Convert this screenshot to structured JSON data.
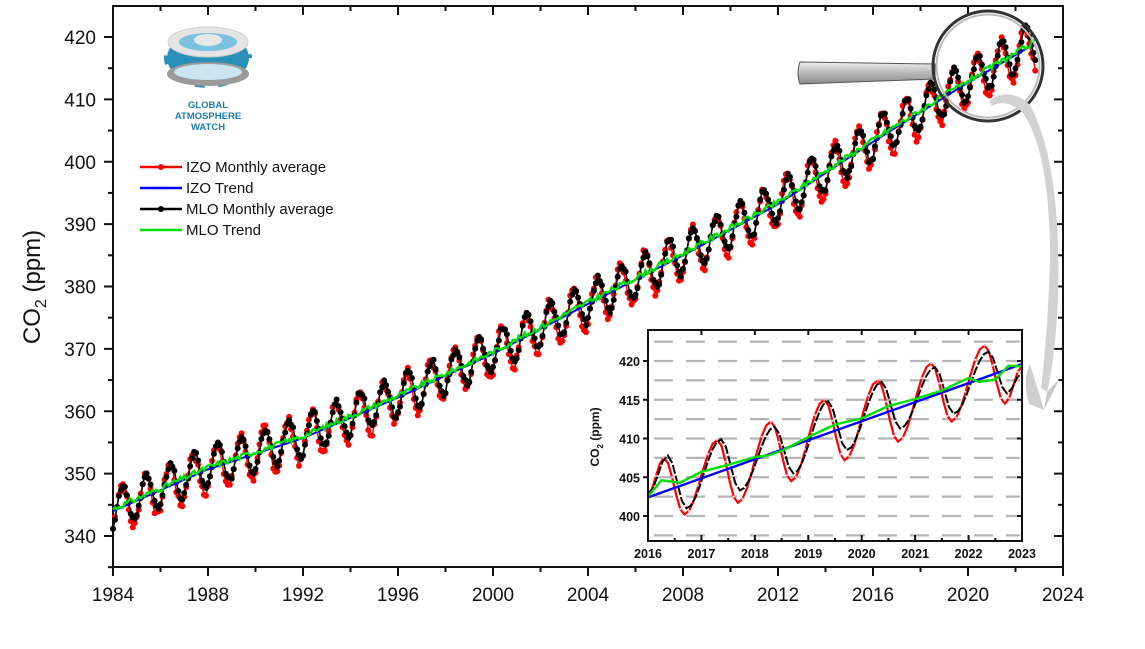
{
  "chart_data": [
    {
      "id": "main",
      "type": "line",
      "title": "",
      "xlabel": "",
      "ylabel": "CO2 (ppm)",
      "ylabel_main": "CO",
      "ylabel_sub": "2",
      "ylabel_rest": " (ppm)",
      "xlim": [
        1984,
        2024
      ],
      "ylim": [
        335,
        425
      ],
      "x_ticks": [
        1984,
        1988,
        1992,
        1996,
        2000,
        2004,
        2008,
        2012,
        2016,
        2020,
        2024
      ],
      "x_tick_labels": [
        "1984",
        "1988",
        "1992",
        "1996",
        "2000",
        "2004",
        "2008",
        "2012",
        "2016",
        "2020",
        "2024"
      ],
      "y_ticks": [
        340,
        350,
        360,
        370,
        380,
        390,
        400,
        410,
        420
      ],
      "y_tick_labels": [
        "340",
        "350",
        "360",
        "370",
        "380",
        "390",
        "400",
        "410",
        "420"
      ],
      "grid": false,
      "legend_position": "upper-left",
      "trend_anchor_years": [
        1984,
        1988,
        1992,
        1996,
        2000,
        2004,
        2008,
        2012,
        2016,
        2020,
        2022.9
      ],
      "trend_anchor_values": [
        344.3,
        351.0,
        356.0,
        362.5,
        369.5,
        377.5,
        385.3,
        393.5,
        403.5,
        413.0,
        419.4
      ],
      "seasonal_amplitude_mlo": 3.2,
      "seasonal_amplitude_izo": 3.8,
      "seasonal_peak_month": 5,
      "data_end_year": 2022.9,
      "series": [
        {
          "name": "IZO Monthly average",
          "color": "#ff0000",
          "style": "line-with-markers"
        },
        {
          "name": "IZO Trend",
          "color": "#0000ff",
          "style": "line"
        },
        {
          "name": "MLO Monthly average",
          "color": "#000000",
          "style": "line-with-markers"
        },
        {
          "name": "MLO Trend",
          "color": "#00e000",
          "style": "line"
        }
      ]
    },
    {
      "id": "inset",
      "type": "line",
      "title": "",
      "xlabel": "",
      "ylabel": "CO2 (ppm)",
      "ylabel_main": "CO",
      "ylabel_sub": "2",
      "ylabel_rest": " (ppm)",
      "xlim": [
        2016,
        2023
      ],
      "ylim": [
        397,
        423.5
      ],
      "x_ticks": [
        2016,
        2017,
        2018,
        2019,
        2020,
        2021,
        2022,
        2023
      ],
      "x_tick_labels": [
        "2016",
        "2017",
        "2018",
        "2019",
        "2020",
        "2021",
        "2022",
        "2023"
      ],
      "y_ticks": [
        400,
        405,
        410,
        415,
        420
      ],
      "y_tick_labels": [
        "400",
        "405",
        "410",
        "415",
        "420"
      ],
      "grid": true,
      "grid_style": "dashed-horizontal",
      "mlo_peaks": [
        [
          2016.37,
          407.8
        ],
        [
          2017.37,
          409.9
        ],
        [
          2018.37,
          411.5
        ],
        [
          2019.37,
          414.8
        ],
        [
          2020.37,
          417.3
        ],
        [
          2021.37,
          419.2
        ],
        [
          2022.37,
          421.2
        ]
      ],
      "mlo_troughs": [
        [
          2016.72,
          401.0
        ],
        [
          2017.72,
          403.3
        ],
        [
          2018.72,
          405.5
        ],
        [
          2019.72,
          408.5
        ],
        [
          2020.72,
          411.3
        ],
        [
          2021.72,
          413.2
        ],
        [
          2022.72,
          415.8
        ]
      ],
      "izo_peaks": [
        [
          2016.3,
          407.5
        ],
        [
          2017.3,
          409.8
        ],
        [
          2018.3,
          412.2
        ],
        [
          2019.3,
          415.0
        ],
        [
          2020.3,
          417.5
        ],
        [
          2021.3,
          419.7
        ],
        [
          2022.3,
          422.0
        ]
      ],
      "izo_troughs": [
        [
          2016.68,
          400.2
        ],
        [
          2017.68,
          401.7
        ],
        [
          2018.68,
          404.5
        ],
        [
          2019.68,
          407.2
        ],
        [
          2020.68,
          409.6
        ],
        [
          2021.68,
          412.2
        ],
        [
          2022.68,
          414.5
        ]
      ],
      "start_value": 402.8,
      "end_value_izo": 419.3,
      "end_value_mlo": 418.5,
      "izo_trend_start": 402.4,
      "izo_trend_end": 419.6,
      "mlo_trend_points": [
        [
          2016.0,
          402.5
        ],
        [
          2016.25,
          404.6
        ],
        [
          2016.6,
          404.3
        ],
        [
          2017.0,
          405.7
        ],
        [
          2017.5,
          406.6
        ],
        [
          2018.0,
          407.6
        ],
        [
          2018.25,
          407.8
        ],
        [
          2018.5,
          408.4
        ],
        [
          2019.0,
          410.2
        ],
        [
          2019.5,
          411.8
        ],
        [
          2020.0,
          412.6
        ],
        [
          2020.5,
          414.2
        ],
        [
          2021.0,
          415.1
        ],
        [
          2021.5,
          416.2
        ],
        [
          2022.0,
          417.8
        ],
        [
          2022.2,
          417.3
        ],
        [
          2022.5,
          417.6
        ],
        [
          2022.75,
          419.4
        ],
        [
          2023.0,
          419.3
        ]
      ]
    }
  ],
  "logo": {
    "line1": "GLOBAL",
    "line2": "ATMOSPHERE",
    "line3": "WATCH"
  },
  "legend": {
    "items": [
      {
        "label": "IZO Monthly average",
        "color": "#ff0000",
        "marker": true
      },
      {
        "label": "IZO Trend",
        "color": "#0000ff",
        "marker": false
      },
      {
        "label": "MLO Monthly average",
        "color": "#000000",
        "marker": true
      },
      {
        "label": "MLO Trend",
        "color": "#00e000",
        "marker": false
      }
    ]
  },
  "colors": {
    "izo": "#ff0000",
    "mlo": "#000000",
    "izo_trend": "#0000ff",
    "mlo_trend": "#00e000",
    "grid": "#b5b5b5",
    "logo_blue": "#1f7fa8",
    "arrow_grey": "#cfcfcf"
  }
}
